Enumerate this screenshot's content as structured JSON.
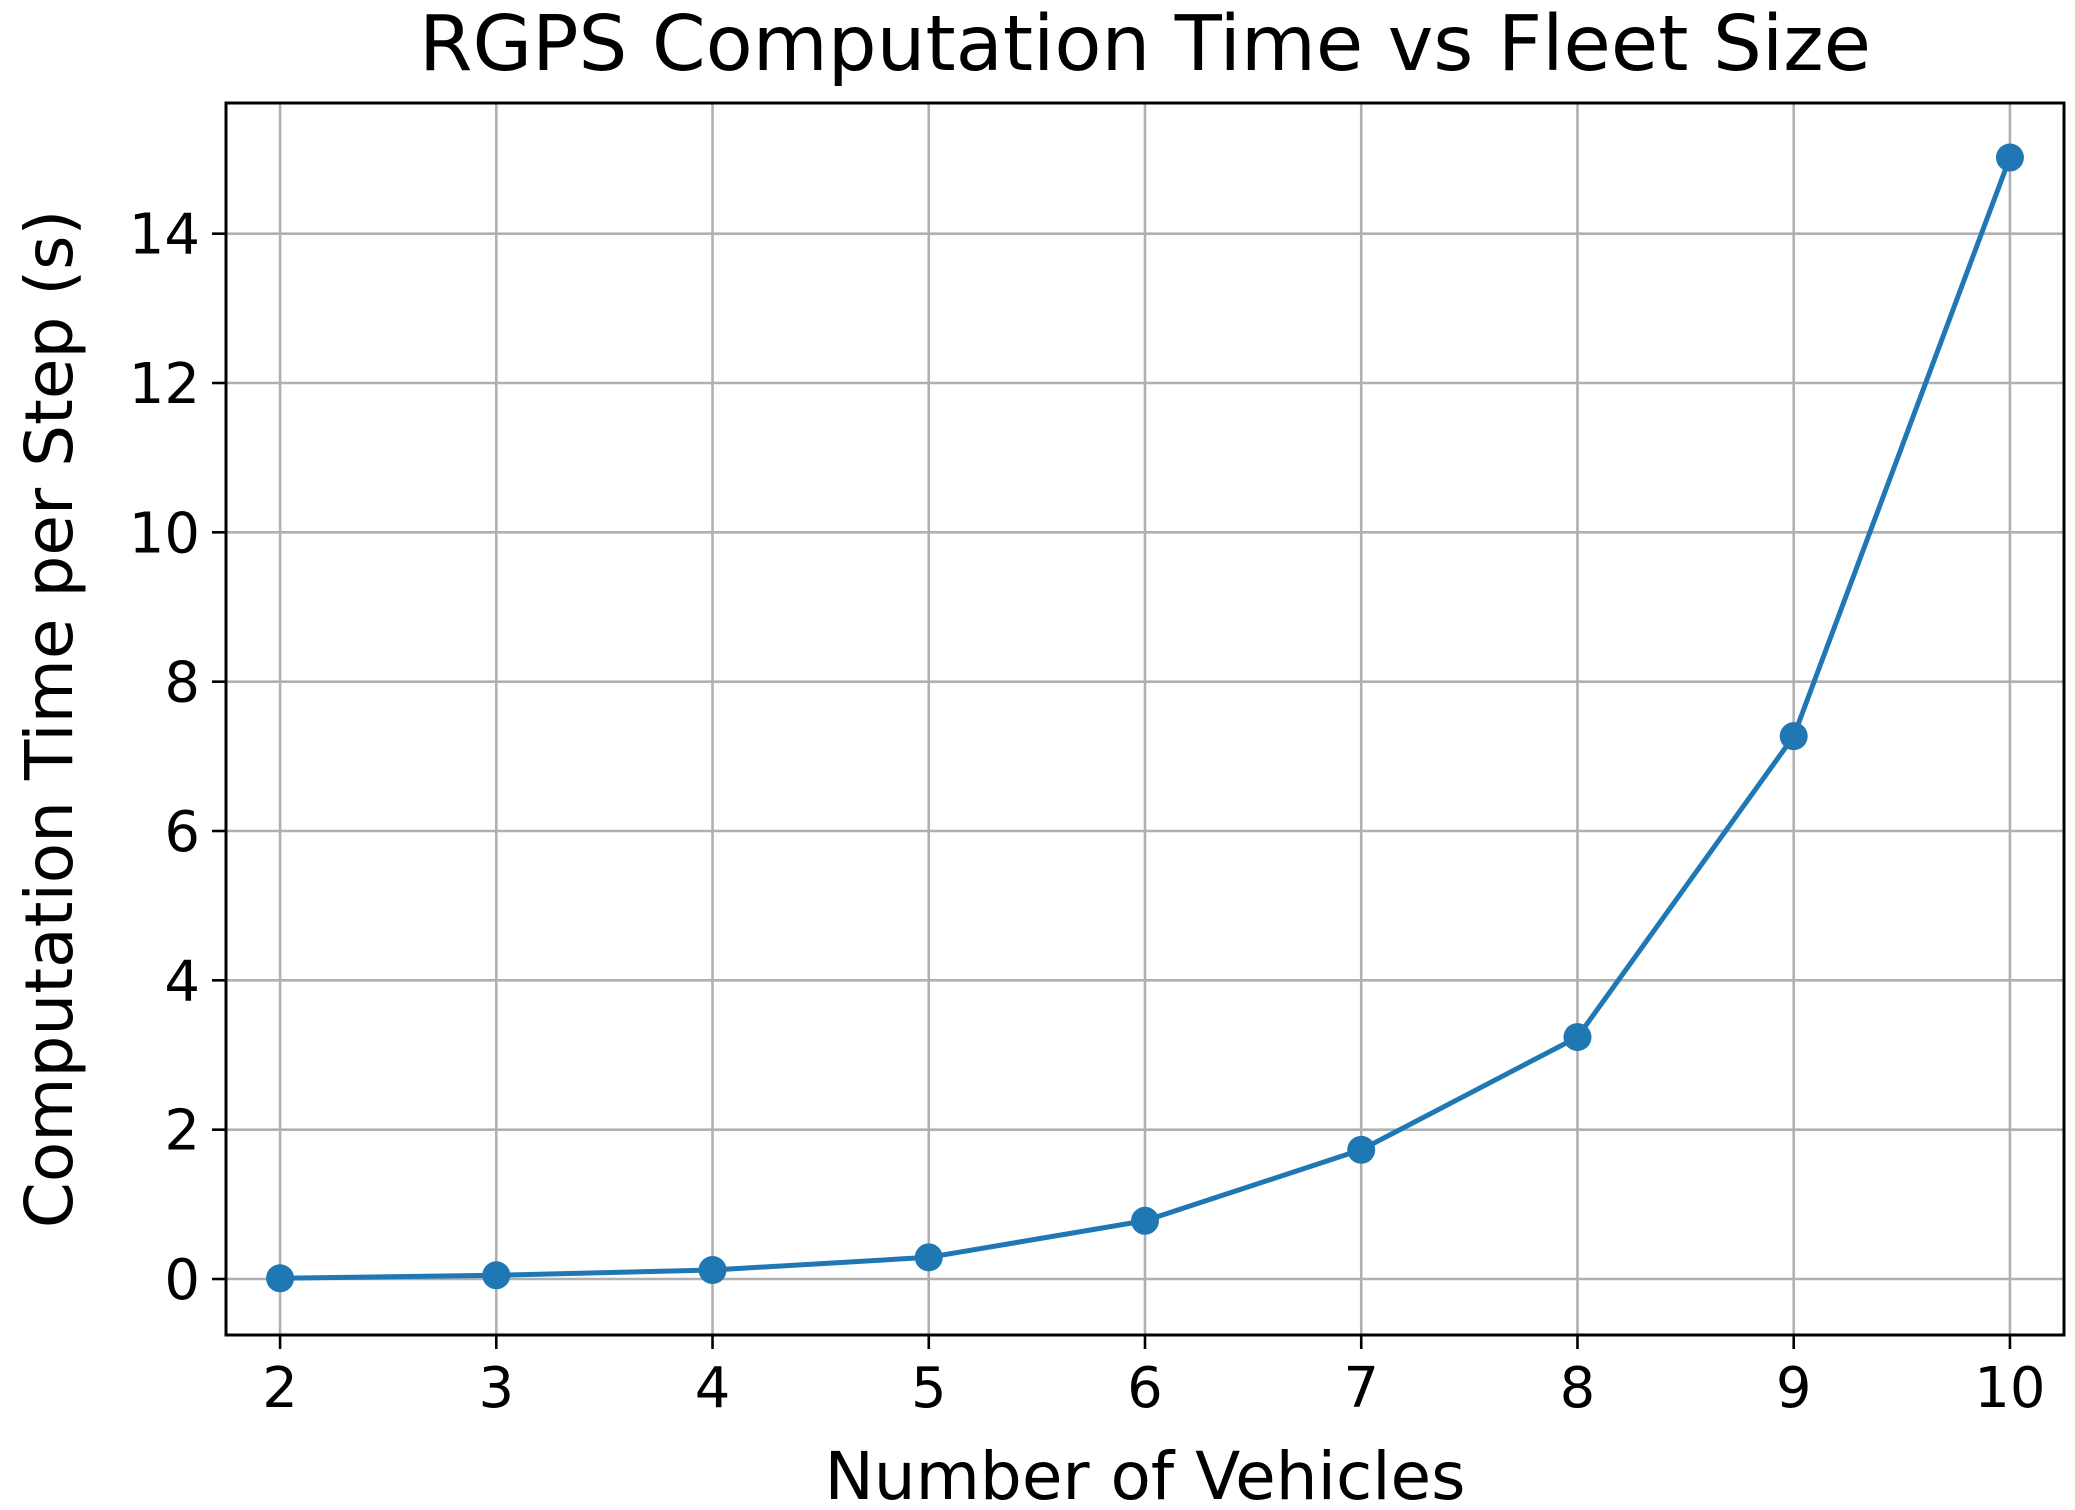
{
  "chart_data": {
    "type": "line",
    "title": "RGPS Computation Time vs Fleet Size",
    "xlabel": "Number of Vehicles",
    "ylabel": "Computation Time per Step (s)",
    "xlim": [
      1.75,
      10.25
    ],
    "ylim": [
      -0.75,
      15.75
    ],
    "xticks": [
      2,
      3,
      4,
      5,
      6,
      7,
      8,
      9,
      10
    ],
    "yticks": [
      0,
      2,
      4,
      6,
      8,
      10,
      12,
      14
    ],
    "grid": true,
    "series": [
      {
        "color": "#1f77b4",
        "marker": "circle",
        "x": [
          2,
          3,
          4,
          5,
          6,
          7,
          8,
          9,
          10
        ],
        "y": [
          0.01,
          0.05,
          0.12,
          0.29,
          0.78,
          1.73,
          3.24,
          7.27,
          15.02
        ]
      }
    ]
  }
}
